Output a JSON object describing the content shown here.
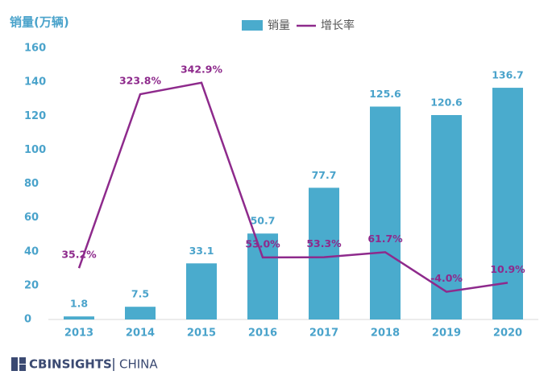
{
  "chart_data": {
    "type": "bar",
    "y_axis_label": "销量(万辆)",
    "categories": [
      "2013",
      "2014",
      "2015",
      "2016",
      "2017",
      "2018",
      "2019",
      "2020"
    ],
    "series": [
      {
        "name": "销量",
        "type": "bar",
        "color": "#4aabcd",
        "values": [
          1.8,
          7.5,
          33.1,
          50.7,
          77.7,
          125.6,
          120.6,
          136.7
        ]
      },
      {
        "name": "增长率",
        "type": "line",
        "axis": "y2",
        "color": "#8e2a8c",
        "values": [
          35.2,
          323.8,
          342.9,
          53.0,
          53.3,
          61.7,
          -4.0,
          10.9
        ],
        "value_labels": [
          "35.2%",
          "323.8%",
          "342.9%",
          "53.0%",
          "53.3%",
          "61.7%",
          "-4.0%",
          "10.9%"
        ]
      }
    ],
    "ylim": [
      0,
      160
    ],
    "yticks": [
      0,
      20,
      40,
      60,
      80,
      100,
      120,
      140,
      160
    ],
    "y2lim": [
      -50,
      400
    ],
    "legend": "top"
  },
  "footer": {
    "brand": "CBINSIGHTS",
    "region": "CHINA"
  }
}
